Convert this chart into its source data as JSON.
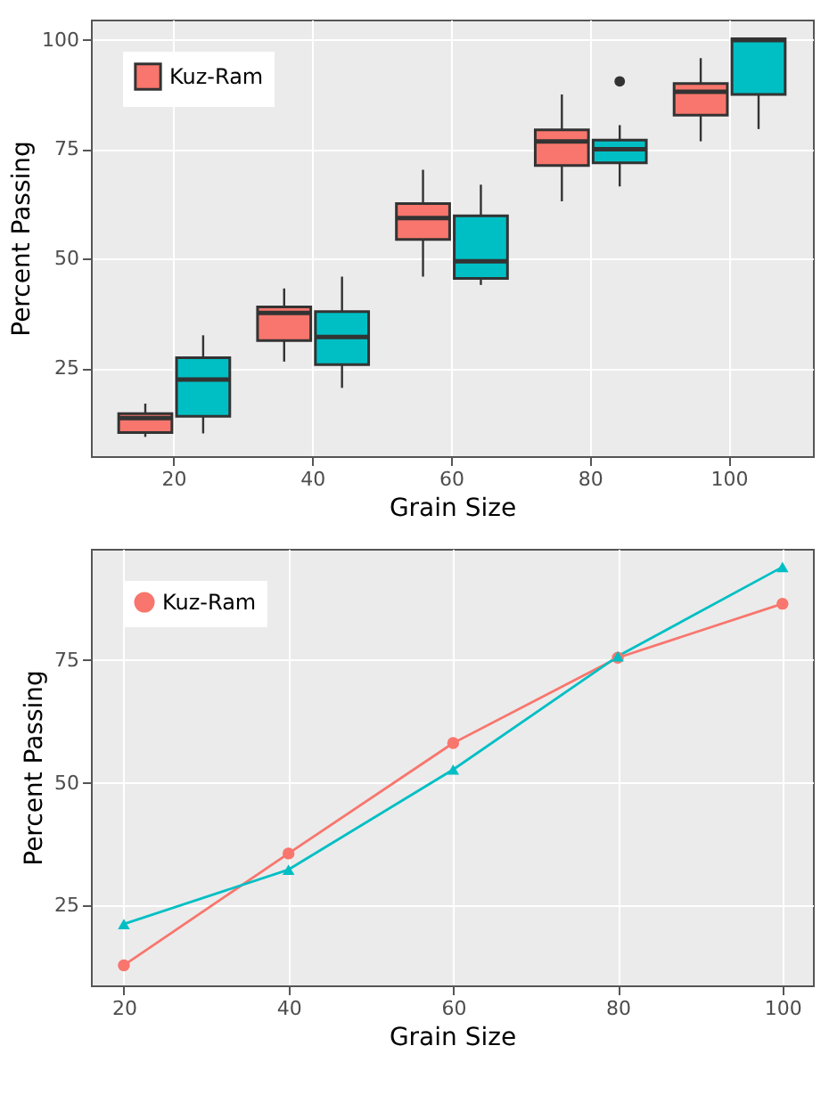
{
  "chart_data": [
    {
      "type": "box",
      "xlabel": "Grain Size",
      "ylabel": "Percent Passing",
      "categories": [
        "20",
        "40",
        "60",
        "80",
        "100"
      ],
      "ylim": [
        4.9,
        104.6
      ],
      "yticks": [
        25,
        50,
        75,
        100
      ],
      "grid": true,
      "legend": "top left",
      "series": [
        {
          "name": "Kuz-Ram",
          "color": "#f8766d",
          "boxes": [
            {
              "low": 9.3,
              "q1": 10.3,
              "median": 13.6,
              "q3": 14.6,
              "high": 16.9
            },
            {
              "low": 26.5,
              "q1": 31.3,
              "median": 37.6,
              "q3": 39.0,
              "high": 43.2
            },
            {
              "low": 45.9,
              "q1": 54.4,
              "median": 59.3,
              "q3": 62.6,
              "high": 70.3
            },
            {
              "low": 63.1,
              "q1": 71.3,
              "median": 76.8,
              "q3": 79.4,
              "high": 87.5
            },
            {
              "low": 76.8,
              "q1": 82.8,
              "median": 88.1,
              "q3": 90.0,
              "high": 95.8
            }
          ]
        },
        {
          "color": "#00bfc4",
          "boxes": [
            {
              "low": 10.1,
              "q1": 14.0,
              "median": 22.4,
              "q3": 27.4,
              "high": 32.5
            },
            {
              "low": 20.5,
              "q1": 25.8,
              "median": 32.1,
              "q3": 37.9,
              "high": 45.9
            },
            {
              "low": 44.0,
              "q1": 45.5,
              "median": 49.4,
              "q3": 59.8,
              "high": 66.9
            },
            {
              "low": 66.5,
              "q1": 71.9,
              "median": 75.0,
              "q3": 77.1,
              "high": 80.5,
              "outliers": [
                90.5
              ]
            },
            {
              "low": 79.6,
              "q1": 87.5,
              "median": 99.9,
              "q3": 100.2,
              "high": 100.2
            }
          ]
        }
      ]
    },
    {
      "type": "line",
      "xlabel": "Grain Size",
      "ylabel": "Percent Passing",
      "x": [
        20,
        40,
        60,
        80,
        100
      ],
      "xlim": [
        16.0,
        103.7
      ],
      "xticks": [
        20,
        40,
        60,
        80,
        100
      ],
      "ylim": [
        8.7,
        97.7
      ],
      "yticks": [
        25,
        50,
        75
      ],
      "grid": true,
      "legend": "top left",
      "series": [
        {
          "name": "Kuz-Ram",
          "color": "#f8766d",
          "marker": "circle",
          "values": [
            12.8,
            35.6,
            58.1,
            75.5,
            86.5
          ]
        },
        {
          "color": "#00bfc4",
          "marker": "triangle",
          "values": [
            21.2,
            32.3,
            52.7,
            75.8,
            94.0
          ]
        }
      ]
    }
  ]
}
